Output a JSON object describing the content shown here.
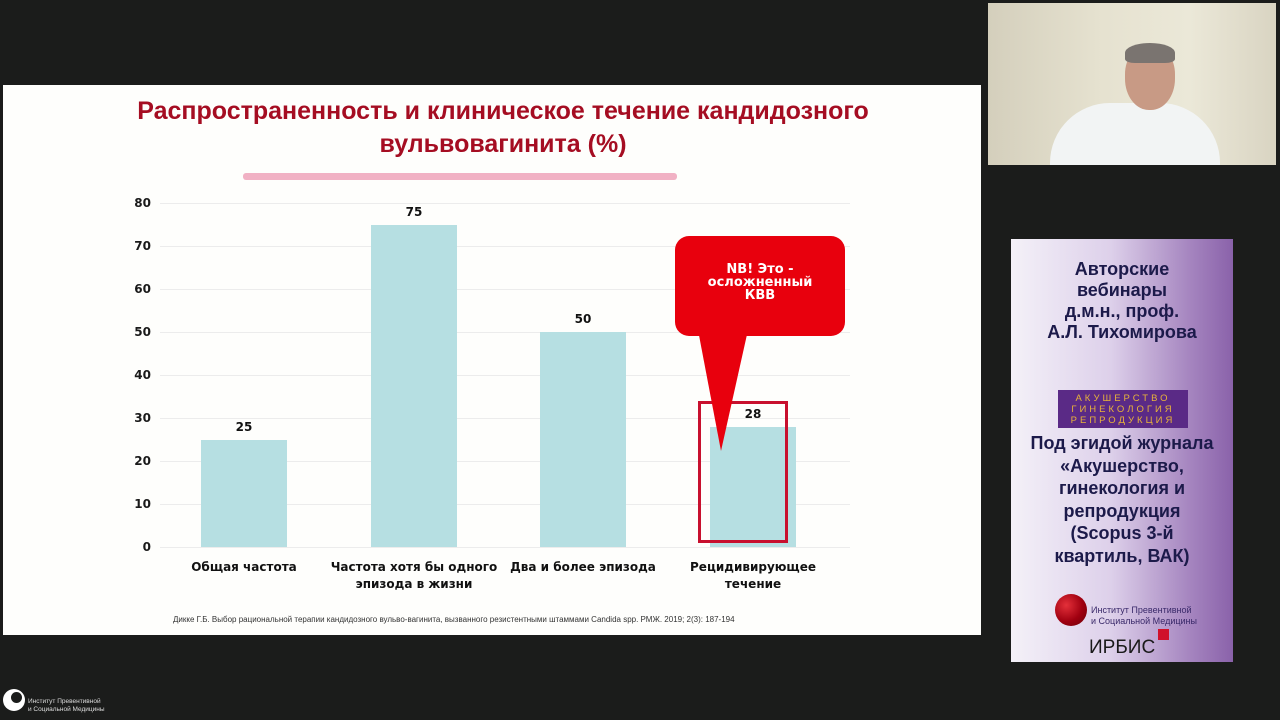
{
  "slide": {
    "title_line1": "Распространенность и клиническое течение кандидозного",
    "title_line2": "вульвовагинита (%)",
    "callout": {
      "line1": "NB! Это  -",
      "line2": "осложненный",
      "line3": "КВВ"
    },
    "source": "Дикке Г.Б. Выбор рациональной терапии кандидозного вульво-вагинита, вызванного резистентными штаммами Candida spp. РМЖ. 2019; 2(3): 187-194",
    "colors": {
      "title": "#a50d22",
      "bar": "#b6dfe2",
      "callout": "#e8000d",
      "highlight": "#c8102e"
    }
  },
  "chart_data": {
    "type": "bar",
    "title": "Распространенность и клиническое течение кандидозного вульвовагинита (%)",
    "categories": [
      "Общая частота",
      "Частота хотя бы одного эпизода в жизни",
      "Два и более эпизода",
      "Рецидивирующее течение"
    ],
    "category_lines": [
      [
        "Общая частота"
      ],
      [
        "Частота хотя бы одного",
        "эпизода в жизни"
      ],
      [
        "Два и более эпизода"
      ],
      [
        "Рецидивирующее течение"
      ]
    ],
    "values": [
      25,
      75,
      50,
      28
    ],
    "value_labels": [
      "25",
      "75",
      "50",
      "28"
    ],
    "xlabel": "",
    "ylabel": "",
    "ylim": [
      0,
      80
    ],
    "yticks": [
      "0",
      "10",
      "20",
      "30",
      "40",
      "50",
      "60",
      "70",
      "80"
    ],
    "grid": true,
    "legend": "none",
    "annotations": [
      {
        "target": "Рецидивирующее течение",
        "text": "NB! Это - осложненный КВВ"
      }
    ]
  },
  "sidebar": {
    "webcam": {
      "label": "presenter-video"
    },
    "promo": {
      "title_lines": [
        "Авторские",
        "вебинары",
        "д.м.н., проф.",
        "А.Л. Тихомирова"
      ],
      "journal_logo": [
        "АКУШЕРСТВО",
        "ГИНЕКОЛОГИЯ",
        "РЕПРОДУКЦИЯ"
      ],
      "journal_lines": [
        "Под эгидой журнала",
        "«Акушерство,",
        "гинекология и",
        "репродукция",
        "(Scopus 3-й",
        "квартиль, ВАК)"
      ],
      "institute_lines": [
        "Институт Превентивной",
        "и Социальной Медицины"
      ],
      "irbis": "ИРБИС"
    }
  },
  "footer": {
    "institute_lines": [
      "Институт Превентивной",
      "и Социальной Медицины"
    ]
  }
}
